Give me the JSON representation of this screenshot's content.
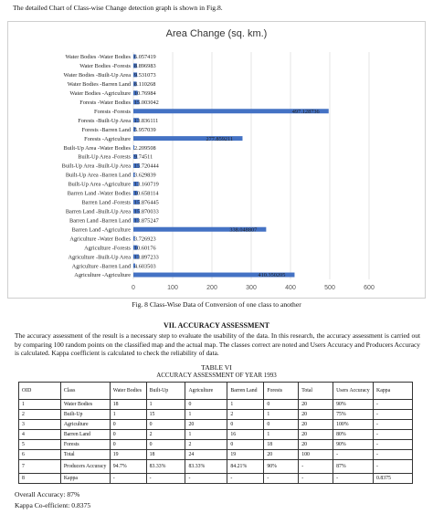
{
  "intro_text": "The detailed Chart of Class-wise Change detection graph is shown in Fig.8.",
  "chart_data": {
    "type": "bar",
    "orientation": "horizontal",
    "title": "Area Change (sq. km.)",
    "categories": [
      "Water Bodies -Water Bodies",
      "Water Bodies -Forests",
      "Water Bodies -Built-Up Area",
      "Water Bodies -Barren Land",
      "Water Bodies -Agriculture",
      "Forests -Water Bodies",
      "Forests -Forests",
      "Forests -Built-Up Area",
      "Forests -Barren Land",
      "Forests -Agriculture",
      "Built-Up Area -Water Bodies",
      "Built-Up Area -Forests",
      "Built-Up Area -Built-Up Area",
      "Built-Up Area -Barren Land",
      "Built-Up Area -Agriculture",
      "Barren Land -Water Bodies",
      "Barren Land -Forests",
      "Barren Land -Built-Up Area",
      "Barren Land -Barren Land",
      "Barren Land -Agriculture",
      "Agriculture -Water Bodies",
      "Agriculture -Forests",
      "Agriculture -Built-Up Area",
      "Agriculture -Barren Land",
      "Agriculture -Agriculture"
    ],
    "values": [
      6.057419,
      8.896983,
      9.531073,
      8.110268,
      10.76984,
      15.003042,
      497.128736,
      13.836111,
      5.957039,
      277.859211,
      2.209508,
      9.74511,
      15.720444,
      3.629839,
      13.160719,
      10.658114,
      15.876445,
      15.870033,
      13.875247,
      338.048807,
      3.726923,
      10.60176,
      13.897233,
      4.603503,
      410.350205
    ],
    "value_labels": [
      "6.057419",
      "8.896983",
      "9.531073",
      "8.110268",
      "10.76984",
      "15.003042",
      "497.128736",
      "13.836111",
      "5.957039",
      "277.859211",
      "2.209508",
      "9.74511",
      "15.720444",
      "3.629839",
      "13.160719",
      "10.658114",
      "15.876445",
      "15.870033",
      "13.875247",
      "338.048807",
      "3.726923",
      "10.60176",
      "13.897233",
      "4.603503",
      "410.350205"
    ],
    "xlim": [
      0,
      600
    ],
    "xticks": [
      "0",
      "100",
      "200",
      "300",
      "400",
      "500",
      "600"
    ],
    "grid": true,
    "bar_color": "#4472c4"
  },
  "figure_caption": "Fig. 8 Class-Wise Data of Conversion of one class to another",
  "section_heading": "VII.      ACCURACY ASSESSMENT",
  "paragraph": "The accuracy assessment of the result is a necessary step to evaluate the usability of the data. In this research, the accuracy assessment is carried out by comparing 100 random points on the classified map and the actual map. The classes correct are noted and Users Accuracy and Producers Accuracy is calculated. Kappa coefficient is calculated to check the reliability of data.",
  "table_label": "TABLE VI",
  "table_title": "ACCURACY ASSESSMENT OF YEAR 1993",
  "table": {
    "headers": [
      "OID",
      "Class",
      "Water Bodies",
      "Built-Up",
      "Agriculture",
      "Barren Land",
      "Forests",
      "Total",
      "Users Accuracy",
      "Kappa"
    ],
    "rows": [
      [
        "1",
        "Water Bodies",
        "18",
        "1",
        "0",
        "1",
        "0",
        "20",
        "90%",
        "-"
      ],
      [
        "2",
        "Built-Up",
        "1",
        "15",
        "1",
        "2",
        "1",
        "20",
        "75%",
        "-"
      ],
      [
        "3",
        "Agriculture",
        "0",
        "0",
        "20",
        "0",
        "0",
        "20",
        "100%",
        "-"
      ],
      [
        "4",
        "Barren Land",
        "0",
        "2",
        "1",
        "16",
        "1",
        "20",
        "80%",
        "-"
      ],
      [
        "5",
        "Forests",
        "0",
        "0",
        "2",
        "0",
        "18",
        "20",
        "90%",
        "-"
      ],
      [
        "6",
        "Total",
        "19",
        "18",
        "24",
        "19",
        "20",
        "100",
        "-",
        "-"
      ],
      [
        "7",
        "Producers Accuracy",
        "94.7%",
        "83.33%",
        "83.33%",
        "84.21%",
        "90%",
        "-",
        "87%",
        "-"
      ],
      [
        "8",
        "Kappa",
        "-",
        "-",
        "-",
        "-",
        "-",
        "-",
        "-",
        "0.8375"
      ]
    ]
  },
  "overall_accuracy": "Overall Accuracy: 87%",
  "kappa_coefficient": "Kappa Co-efficient: 0.8375"
}
